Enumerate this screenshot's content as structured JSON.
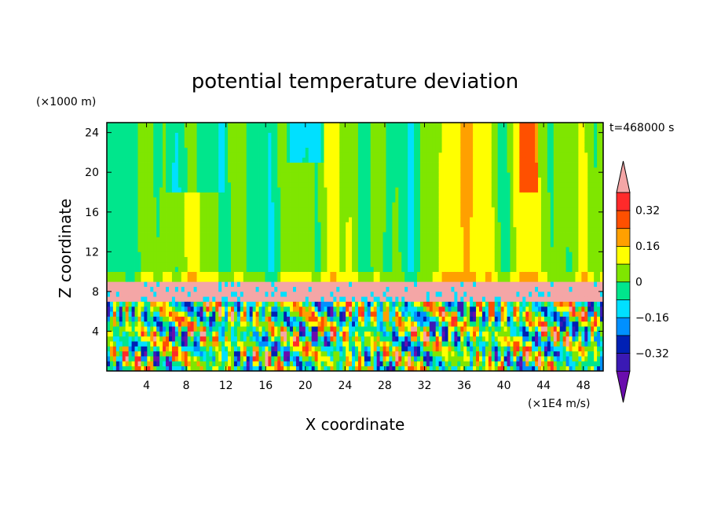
{
  "chart_data": {
    "type": "heatmap",
    "title": "potential temperature deviation",
    "xlabel": "X coordinate",
    "ylabel": "Z coordinate",
    "x_unit": "(×1E4 m/s)",
    "y_unit": "(×1000 m)",
    "time_label": "t=468000 s",
    "xlim": [
      0,
      50
    ],
    "ylim": [
      0,
      25
    ],
    "x_ticks": [
      4,
      8,
      12,
      16,
      20,
      24,
      28,
      32,
      36,
      40,
      44,
      48
    ],
    "y_ticks": [
      4,
      8,
      12,
      16,
      20,
      24
    ],
    "colorbar": {
      "levels": [
        -0.4,
        -0.32,
        -0.24,
        -0.16,
        -0.08,
        0,
        0.08,
        0.16,
        0.24,
        0.32,
        0.4
      ],
      "labeled_levels": [
        -0.32,
        -0.16,
        0,
        0.16,
        0.32
      ],
      "tick_labels": [
        "0.32",
        "0.16",
        "0",
        "−0.16",
        "−0.32"
      ],
      "colors": [
        "#6a0dad",
        "#3a19b4",
        "#0020b4",
        "#0090ff",
        "#00e0ff",
        "#00e68c",
        "#7fe600",
        "#ffff00",
        "#ffa000",
        "#ff5000",
        "#ff2a2a",
        "#f4a6a6"
      ],
      "extend": "both"
    },
    "regions": {
      "upper_background_value": 0.02,
      "stable_layer_z": [
        7.2,
        8.8
      ],
      "stable_layer_value": 0.45,
      "turbulent_layer_z": [
        0,
        7.2
      ]
    }
  }
}
